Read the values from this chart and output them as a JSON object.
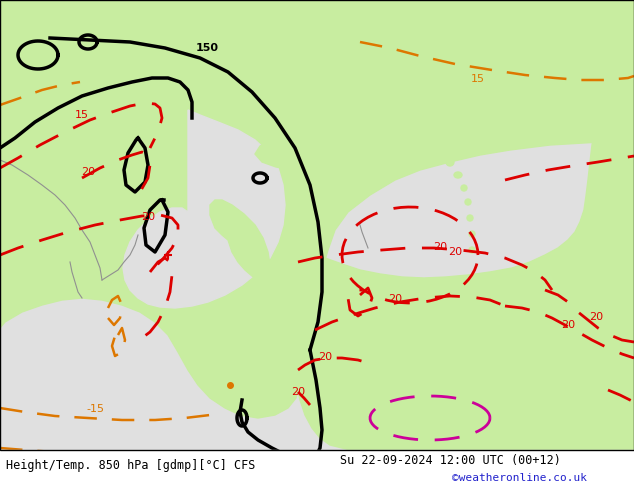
{
  "title_left": "Height/Temp. 850 hPa [gdmp][°C] CFS",
  "title_right": "Su 22-09-2024 12:00 UTC (00+12)",
  "copyright": "©weatheronline.co.uk",
  "bg_color": "#e0e0e0",
  "land_color": "#c8eda0",
  "ocean_color": "#e0e0e0",
  "coast_color": "#909090",
  "black_color": "#000000",
  "red_color": "#dd0000",
  "orange_color": "#dd7700",
  "magenta_color": "#cc0099",
  "fig_width": 6.34,
  "fig_height": 4.9,
  "dpi": 100
}
